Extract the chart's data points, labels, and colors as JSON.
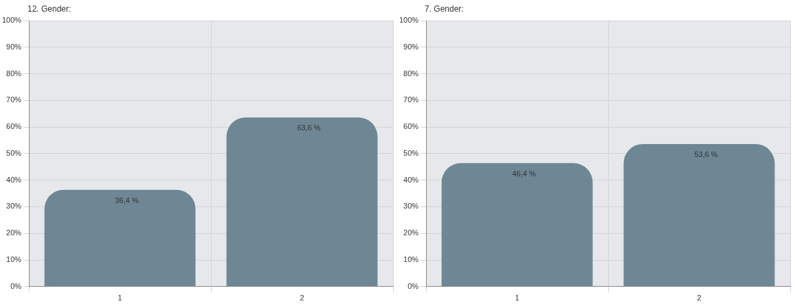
{
  "chart_data": [
    {
      "type": "bar",
      "title": "12. Gender:",
      "categories": [
        "1",
        "2"
      ],
      "values": [
        36.4,
        63.6
      ],
      "value_labels": [
        "36,4 %",
        "63,6 %"
      ],
      "color": "#6f8794",
      "ylim": [
        0,
        100
      ],
      "yticks": [
        {
          "value": 0,
          "label": "0%"
        },
        {
          "value": 10,
          "label": "10%"
        },
        {
          "value": 20,
          "label": "20%"
        },
        {
          "value": 30,
          "label": "30%"
        },
        {
          "value": 40,
          "label": "40%"
        },
        {
          "value": 50,
          "label": "50%"
        },
        {
          "value": 60,
          "label": "60%"
        },
        {
          "value": 70,
          "label": "70%"
        },
        {
          "value": 80,
          "label": "80%"
        },
        {
          "value": 90,
          "label": "90%"
        },
        {
          "value": 100,
          "label": "100%"
        }
      ],
      "grid": true
    },
    {
      "type": "bar",
      "title": "7. Gender:",
      "categories": [
        "1",
        "2"
      ],
      "values": [
        46.4,
        53.6
      ],
      "value_labels": [
        "46,4 %",
        "53,6 %"
      ],
      "color": "#6f8794",
      "ylim": [
        0,
        100
      ],
      "yticks": [
        {
          "value": 0,
          "label": "0%"
        },
        {
          "value": 10,
          "label": "10%"
        },
        {
          "value": 20,
          "label": "20%"
        },
        {
          "value": 30,
          "label": "30%"
        },
        {
          "value": 40,
          "label": "40%"
        },
        {
          "value": 50,
          "label": "50%"
        },
        {
          "value": 60,
          "label": "60%"
        },
        {
          "value": 70,
          "label": "70%"
        },
        {
          "value": 80,
          "label": "80%"
        },
        {
          "value": 90,
          "label": "90%"
        },
        {
          "value": 100,
          "label": "100%"
        }
      ],
      "grid": true
    }
  ]
}
